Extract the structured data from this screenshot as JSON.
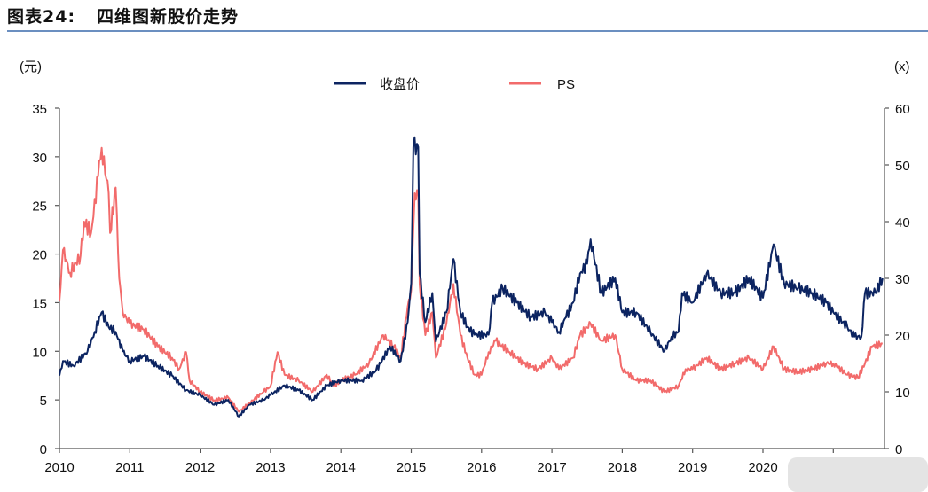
{
  "header": {
    "figure_no": "图表24:",
    "title": "四维图新股价走势"
  },
  "chart_data": {
    "type": "line",
    "title": "四维图新股价走势",
    "ylabel_left": "(元)",
    "ylabel_right": "(x)",
    "xlim": [
      2010,
      2021.7
    ],
    "ylim_left": [
      0,
      35
    ],
    "ylim_right": [
      0,
      60
    ],
    "x_ticks": [
      2010,
      2011,
      2012,
      2013,
      2014,
      2015,
      2016,
      2017,
      2018,
      2019,
      2020
    ],
    "x_tick_positions": [
      2010,
      2011,
      2012,
      2013,
      2014,
      2015,
      2016,
      2017,
      2018,
      2019,
      2020,
      2021
    ],
    "y_ticks_left": [
      0,
      5,
      10,
      15,
      20,
      25,
      30,
      35
    ],
    "y_ticks_right": [
      0,
      10,
      20,
      30,
      40,
      50,
      60
    ],
    "legend_position": "top-center",
    "grid": false,
    "series": [
      {
        "name": "收盘价",
        "axis": "left",
        "color": "#0c2461",
        "points": [
          [
            2010.0,
            7.5
          ],
          [
            2010.05,
            9
          ],
          [
            2010.2,
            8.5
          ],
          [
            2010.4,
            10
          ],
          [
            2010.5,
            12
          ],
          [
            2010.6,
            14
          ],
          [
            2010.7,
            12.5
          ],
          [
            2010.8,
            12
          ],
          [
            2010.9,
            10
          ],
          [
            2011.0,
            9
          ],
          [
            2011.2,
            9.5
          ],
          [
            2011.4,
            8.5
          ],
          [
            2011.6,
            7.5
          ],
          [
            2011.8,
            6
          ],
          [
            2012.0,
            5.5
          ],
          [
            2012.2,
            4.5
          ],
          [
            2012.4,
            5
          ],
          [
            2012.55,
            3.3
          ],
          [
            2012.7,
            4.5
          ],
          [
            2012.9,
            5
          ],
          [
            2013.0,
            5.5
          ],
          [
            2013.2,
            6.5
          ],
          [
            2013.4,
            6
          ],
          [
            2013.6,
            5
          ],
          [
            2013.8,
            6.5
          ],
          [
            2014.0,
            7
          ],
          [
            2014.3,
            7
          ],
          [
            2014.5,
            8
          ],
          [
            2014.7,
            10.5
          ],
          [
            2014.85,
            9
          ],
          [
            2014.95,
            13
          ],
          [
            2015.0,
            17
          ],
          [
            2015.03,
            31
          ],
          [
            2015.1,
            31
          ],
          [
            2015.12,
            18
          ],
          [
            2015.2,
            13
          ],
          [
            2015.3,
            16
          ],
          [
            2015.35,
            11
          ],
          [
            2015.5,
            14
          ],
          [
            2015.6,
            19.5
          ],
          [
            2015.7,
            14
          ],
          [
            2015.8,
            12.5
          ],
          [
            2015.9,
            11.7
          ],
          [
            2016.1,
            11.7
          ],
          [
            2016.15,
            15
          ],
          [
            2016.3,
            16.5
          ],
          [
            2016.5,
            15
          ],
          [
            2016.7,
            13.5
          ],
          [
            2016.9,
            14
          ],
          [
            2017.0,
            13
          ],
          [
            2017.1,
            12
          ],
          [
            2017.2,
            13.5
          ],
          [
            2017.3,
            15
          ],
          [
            2017.4,
            18
          ],
          [
            2017.5,
            19
          ],
          [
            2017.55,
            21.5
          ],
          [
            2017.7,
            16
          ],
          [
            2017.9,
            17.5
          ],
          [
            2018.0,
            14
          ],
          [
            2018.2,
            14
          ],
          [
            2018.4,
            12
          ],
          [
            2018.6,
            10
          ],
          [
            2018.7,
            11.5
          ],
          [
            2018.8,
            12
          ],
          [
            2018.85,
            16
          ],
          [
            2019.0,
            15
          ],
          [
            2019.2,
            18
          ],
          [
            2019.4,
            16
          ],
          [
            2019.6,
            16
          ],
          [
            2019.8,
            17.5
          ],
          [
            2020.0,
            15.5
          ],
          [
            2020.15,
            21
          ],
          [
            2020.3,
            17
          ],
          [
            2020.5,
            16.5
          ],
          [
            2020.7,
            16
          ],
          [
            2020.9,
            15
          ],
          [
            2021.0,
            14
          ],
          [
            2021.2,
            12.5
          ],
          [
            2021.3,
            11.5
          ],
          [
            2021.4,
            11.5
          ],
          [
            2021.45,
            16
          ],
          [
            2021.6,
            16
          ],
          [
            2021.7,
            17.5
          ]
        ]
      },
      {
        "name": "PS",
        "axis": "right",
        "color": "#f26b6b",
        "points": [
          [
            2010.0,
            26
          ],
          [
            2010.05,
            35
          ],
          [
            2010.15,
            31
          ],
          [
            2010.3,
            34
          ],
          [
            2010.35,
            40
          ],
          [
            2010.45,
            38
          ],
          [
            2010.55,
            48
          ],
          [
            2010.6,
            53
          ],
          [
            2010.7,
            45
          ],
          [
            2010.72,
            38
          ],
          [
            2010.8,
            46
          ],
          [
            2010.85,
            30
          ],
          [
            2010.9,
            24
          ],
          [
            2011.0,
            22
          ],
          [
            2011.2,
            21
          ],
          [
            2011.4,
            18
          ],
          [
            2011.6,
            16
          ],
          [
            2011.7,
            14
          ],
          [
            2011.8,
            17
          ],
          [
            2011.85,
            12
          ],
          [
            2012.0,
            10
          ],
          [
            2012.2,
            8.5
          ],
          [
            2012.4,
            9
          ],
          [
            2012.55,
            6.5
          ],
          [
            2012.7,
            8
          ],
          [
            2012.9,
            10
          ],
          [
            2013.0,
            11
          ],
          [
            2013.1,
            17
          ],
          [
            2013.2,
            13
          ],
          [
            2013.4,
            12
          ],
          [
            2013.6,
            10
          ],
          [
            2013.8,
            13
          ],
          [
            2013.9,
            11
          ],
          [
            2014.0,
            12
          ],
          [
            2014.2,
            13
          ],
          [
            2014.4,
            15
          ],
          [
            2014.6,
            20
          ],
          [
            2014.75,
            18
          ],
          [
            2014.85,
            16
          ],
          [
            2014.95,
            25
          ],
          [
            2015.0,
            28
          ],
          [
            2015.05,
            45
          ],
          [
            2015.1,
            45
          ],
          [
            2015.12,
            29
          ],
          [
            2015.2,
            20
          ],
          [
            2015.3,
            24
          ],
          [
            2015.35,
            16
          ],
          [
            2015.5,
            22
          ],
          [
            2015.6,
            29
          ],
          [
            2015.7,
            20
          ],
          [
            2015.8,
            16
          ],
          [
            2015.9,
            13
          ],
          [
            2016.0,
            13
          ],
          [
            2016.1,
            17
          ],
          [
            2016.2,
            19
          ],
          [
            2016.4,
            17
          ],
          [
            2016.6,
            15
          ],
          [
            2016.8,
            14
          ],
          [
            2017.0,
            16
          ],
          [
            2017.1,
            14
          ],
          [
            2017.3,
            16
          ],
          [
            2017.4,
            20
          ],
          [
            2017.55,
            22
          ],
          [
            2017.7,
            19
          ],
          [
            2017.9,
            20
          ],
          [
            2018.0,
            14
          ],
          [
            2018.2,
            12
          ],
          [
            2018.4,
            12
          ],
          [
            2018.6,
            10
          ],
          [
            2018.8,
            11
          ],
          [
            2018.9,
            14
          ],
          [
            2019.0,
            14
          ],
          [
            2019.2,
            16
          ],
          [
            2019.4,
            14
          ],
          [
            2019.6,
            15
          ],
          [
            2019.8,
            16
          ],
          [
            2020.0,
            14
          ],
          [
            2020.15,
            18
          ],
          [
            2020.3,
            14
          ],
          [
            2020.5,
            13.5
          ],
          [
            2020.7,
            14
          ],
          [
            2020.9,
            15
          ],
          [
            2021.0,
            15
          ],
          [
            2021.2,
            13
          ],
          [
            2021.35,
            12.5
          ],
          [
            2021.45,
            15
          ],
          [
            2021.55,
            18
          ],
          [
            2021.7,
            18.5
          ]
        ]
      }
    ]
  }
}
